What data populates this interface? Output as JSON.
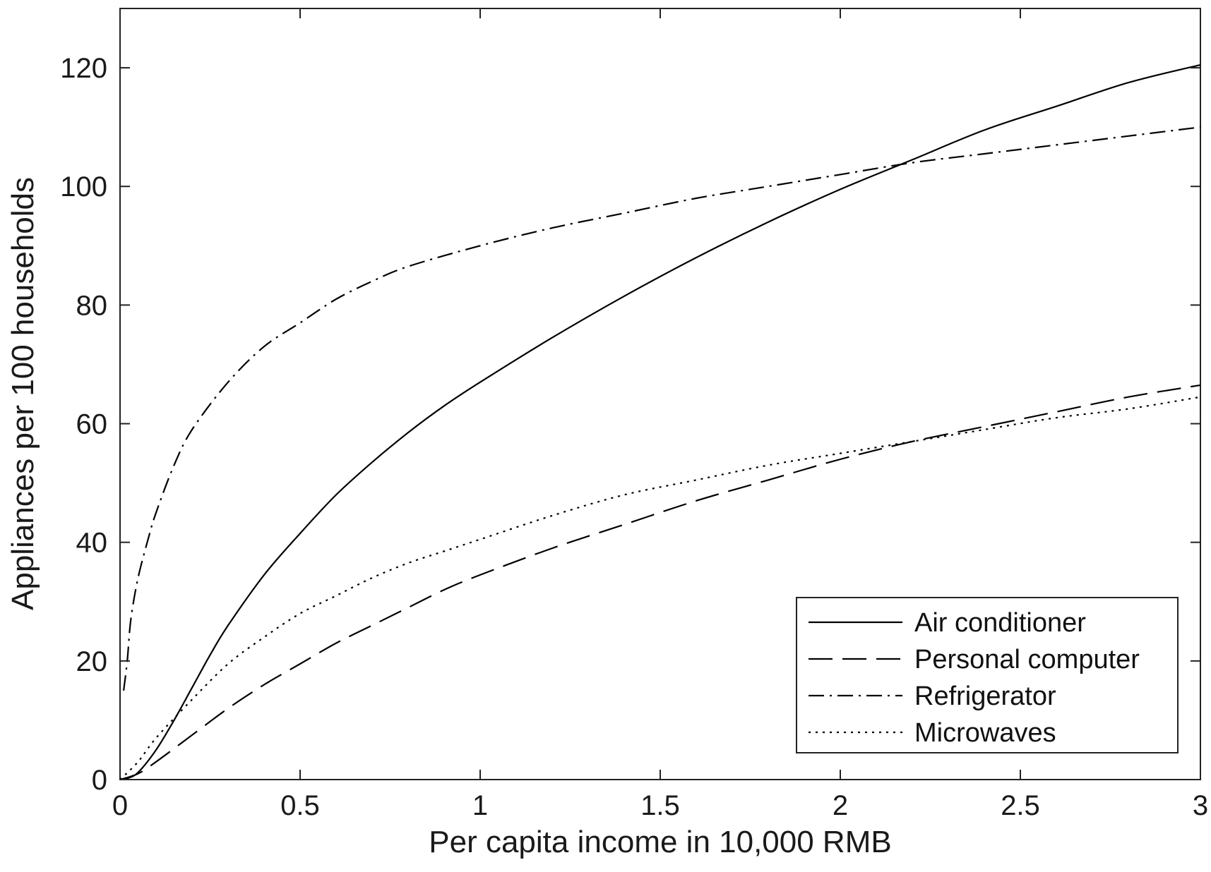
{
  "chart_data": {
    "type": "line",
    "title": "",
    "xlabel": "Per capita income in 10,000 RMB",
    "ylabel": "Appliances per 100 households",
    "xlim": [
      0,
      3
    ],
    "ylim": [
      0,
      130
    ],
    "x_ticks": [
      "0",
      "0.5",
      "1",
      "1.5",
      "2",
      "2.5",
      "3"
    ],
    "y_ticks": [
      "0",
      "20",
      "40",
      "60",
      "80",
      "100",
      "120"
    ],
    "grid": false,
    "legend_position": "bottom-right",
    "series": [
      {
        "name": "Air conditioner",
        "dash": "solid",
        "x": [
          0,
          0.02,
          0.05,
          0.1,
          0.15,
          0.2,
          0.25,
          0.3,
          0.4,
          0.5,
          0.6,
          0.7,
          0.8,
          0.9,
          1.0,
          1.2,
          1.4,
          1.6,
          1.8,
          2.0,
          2.2,
          2.4,
          2.6,
          2.8,
          3.0
        ],
        "y": [
          0,
          0.2,
          1.2,
          5,
          10,
          15.5,
          21,
          26,
          34.5,
          41.5,
          48,
          53.5,
          58.5,
          63,
          67,
          74.5,
          81.5,
          88,
          94,
          99.5,
          104.5,
          109.5,
          113.5,
          117.5,
          120.5
        ]
      },
      {
        "name": "Personal computer",
        "dash": "long-dash",
        "x": [
          0,
          0.05,
          0.1,
          0.2,
          0.3,
          0.4,
          0.5,
          0.6,
          0.7,
          0.8,
          0.9,
          1.0,
          1.2,
          1.4,
          1.6,
          1.8,
          2.0,
          2.2,
          2.4,
          2.6,
          2.8,
          3.0
        ],
        "y": [
          0,
          1,
          3,
          7.5,
          12,
          16,
          19.5,
          23,
          26,
          29,
          32,
          34.5,
          39,
          43,
          47,
          50.5,
          54,
          57,
          59.5,
          62,
          64.5,
          66.5
        ]
      },
      {
        "name": "Refrigerator",
        "dash": "dash-dot",
        "x": [
          0.01,
          0.02,
          0.03,
          0.05,
          0.08,
          0.1,
          0.15,
          0.2,
          0.3,
          0.4,
          0.5,
          0.6,
          0.7,
          0.8,
          1.0,
          1.2,
          1.4,
          1.6,
          1.8,
          2.0,
          2.2,
          2.4,
          2.6,
          2.8,
          3.0
        ],
        "y": [
          15,
          20,
          27,
          34,
          41,
          45,
          53,
          59,
          67,
          73,
          77,
          81,
          84,
          86.5,
          90,
          93,
          95.5,
          98,
          100,
          102,
          104,
          105.5,
          107,
          108.5,
          110
        ]
      },
      {
        "name": "Microwaves",
        "dash": "dotted",
        "x": [
          0,
          0.05,
          0.1,
          0.2,
          0.3,
          0.4,
          0.5,
          0.6,
          0.7,
          0.8,
          0.9,
          1.0,
          1.2,
          1.4,
          1.6,
          1.8,
          2.0,
          2.2,
          2.4,
          2.6,
          2.8,
          3.0
        ],
        "y": [
          0,
          3,
          7,
          13.5,
          19.5,
          24,
          28,
          31,
          34,
          36.5,
          38.5,
          40.5,
          44.5,
          48,
          50.5,
          53,
          55,
          57,
          59,
          61,
          62.5,
          64.5
        ]
      }
    ]
  }
}
